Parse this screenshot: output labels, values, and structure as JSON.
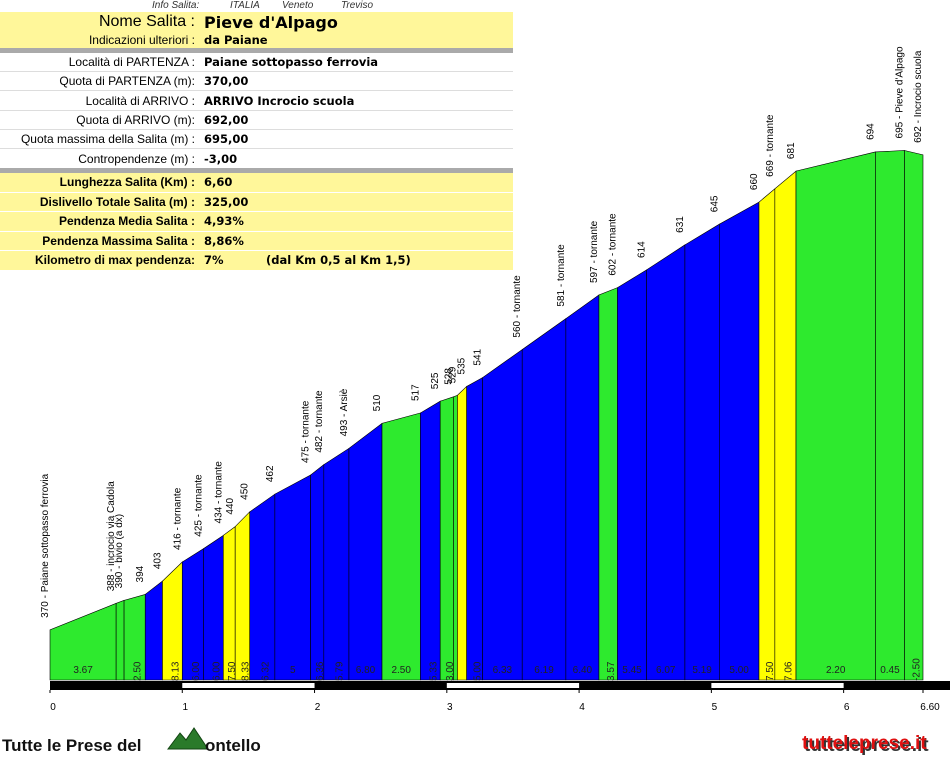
{
  "header": {
    "info": [
      "Info Salita:",
      "ITALIA",
      "Veneto",
      "Treviso"
    ],
    "name": [
      "Nome Salita :",
      "Pieve d'Alpago"
    ],
    "direction": [
      "Indicazioni ulteriori :",
      "da Paiane"
    ],
    "rows": [
      [
        "Località di PARTENZA :",
        "Paiane sottopasso ferrovia"
      ],
      [
        "Quota di PARTENZA (m):",
        "370,00"
      ],
      [
        "Località di ARRIVO :",
        "ARRIVO Incrocio scuola"
      ],
      [
        "Quota di ARRIVO (m):",
        "692,00"
      ],
      [
        "Quota massima della Salita (m) :",
        "695,00"
      ],
      [
        "Contropendenze (m) :",
        "-3,00"
      ]
    ],
    "summary": [
      [
        "Lunghezza Salita (Km) :",
        "6,60"
      ],
      [
        "Dislivello Totale Salita (m) :",
        "325,00"
      ],
      [
        "Pendenza Media Salita :",
        "4,93%"
      ],
      [
        "Pendenza Massima Salita :",
        "8,86%"
      ],
      [
        "Kilometro di max pendenza:",
        "7%"
      ]
    ],
    "max_note": "(dal Km 0,5 al Km 1,5)"
  },
  "chart_data": {
    "type": "profile",
    "x": [
      0,
      0.5,
      0.56,
      0.72,
      0.85,
      1.0,
      1.16,
      1.31,
      1.4,
      1.51,
      1.7,
      1.97,
      2.07,
      2.26,
      2.51,
      2.8,
      2.95,
      3.05,
      3.08,
      3.15,
      3.27,
      3.57,
      3.9,
      4.15,
      4.29,
      4.51,
      4.8,
      5.06,
      5.36,
      5.48,
      5.64,
      6.24,
      6.46,
      6.6
    ],
    "y": [
      370,
      388,
      390,
      394,
      403,
      416,
      425,
      434,
      440,
      450,
      462,
      475,
      482,
      493,
      510,
      517,
      525,
      528,
      529,
      535,
      541,
      560,
      581,
      597,
      602,
      614,
      631,
      645,
      660,
      669,
      681,
      694,
      695,
      692
    ],
    "point_labels": [
      "370 - Paiane sottopasso ferrovia",
      "388 - incrocio via Cadola",
      "390 - bivio (a dx)",
      "394",
      "403",
      "416 - tornante",
      "425 - tornante",
      "434 - tornante",
      "440",
      "450",
      "462",
      "475 - tornante",
      "482 - tornante",
      "493 - Arsiè",
      "510",
      "517",
      "525",
      "528",
      "529",
      "535",
      "541",
      "560 - tornante",
      "581 - tornante",
      "597 - tornante",
      "602 - tornante",
      "614",
      "631",
      "645",
      "660",
      "669 - tornante",
      "681",
      "694",
      "695 - Pieve d'Alpago",
      "692 - Incrocio scuola"
    ],
    "grade_labels": [
      "3.67",
      null,
      "2.50",
      null,
      "8.13",
      "6.00",
      "6.00",
      "7.50",
      "8.33",
      "6.32",
      "5",
      "6.36",
      "5.79",
      "6.80",
      "2.50",
      "5.33",
      "3.00",
      null,
      null,
      "5.00",
      "6.33",
      "6.19",
      "6.40",
      "3.57",
      "5.45",
      "6.07",
      "5.19",
      "5.00",
      "7.50",
      "7.06",
      "2.20",
      "0.45",
      "-2.50"
    ],
    "colors": [
      "#2eea2e",
      "#2eea2e",
      "#2eea2e",
      "#0000ff",
      "#ffff00",
      "#0000ff",
      "#0000ff",
      "#ffff00",
      "#ffff00",
      "#0000ff",
      "#0000ff",
      "#0000ff",
      "#0000ff",
      "#0000ff",
      "#2eea2e",
      "#0000ff",
      "#2eea2e",
      "#2eea2e",
      "#ffff00",
      "#0000ff",
      "#0000ff",
      "#0000ff",
      "#0000ff",
      "#2eea2e",
      "#0000ff",
      "#0000ff",
      "#0000ff",
      "#0000ff",
      "#ffff00",
      "#ffff00",
      "#2eea2e",
      "#2eea2e",
      "#2eea2e"
    ],
    "xlim": [
      0,
      6.6
    ],
    "ylim": [
      336,
      797
    ],
    "xticks": [
      0,
      1,
      2,
      3,
      4,
      5,
      6,
      {
        "value": 6.6,
        "label": "6.60"
      }
    ]
  },
  "footer": {
    "logo_left": "Tutte le Prese del",
    "logo_right": "ontello",
    "site": "tutteleprese.it"
  }
}
